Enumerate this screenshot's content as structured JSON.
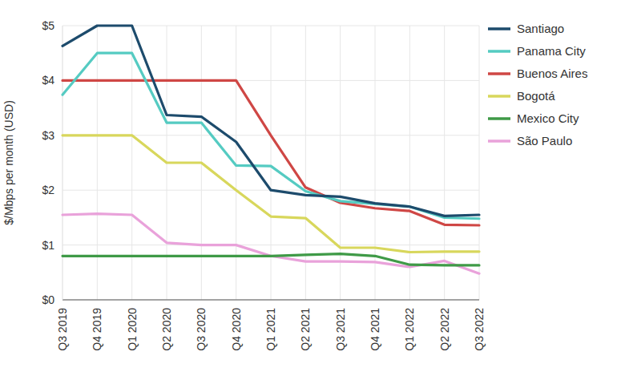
{
  "chart_data": {
    "type": "line",
    "y_label": "$/Mbps per month (USD)",
    "categories": [
      "Q3 2019",
      "Q4 2019",
      "Q1 2020",
      "Q2 2020",
      "Q3 2020",
      "Q4 2020",
      "Q1 2021",
      "Q2 2021",
      "Q3 2021",
      "Q4 2021",
      "Q1 2022",
      "Q2 2022",
      "Q3 2022"
    ],
    "series": [
      {
        "name": "Santiago",
        "color": "#1d4b6c",
        "values": [
          4.63,
          5.0,
          5.0,
          3.37,
          3.34,
          2.88,
          2.0,
          1.91,
          1.88,
          1.76,
          1.7,
          1.53,
          1.55
        ]
      },
      {
        "name": "Panama City",
        "color": "#55cbc2",
        "values": [
          3.74,
          4.5,
          4.5,
          3.23,
          3.23,
          2.45,
          2.44,
          1.98,
          1.8,
          1.75,
          1.7,
          1.5,
          1.48
        ]
      },
      {
        "name": "Buenos Aires",
        "color": "#cf4745",
        "values": [
          4.0,
          4.0,
          4.0,
          4.0,
          4.0,
          4.0,
          3.0,
          2.05,
          1.77,
          1.67,
          1.62,
          1.37,
          1.36
        ]
      },
      {
        "name": "Bogotá",
        "color": "#d8d75c",
        "values": [
          3.0,
          3.0,
          3.0,
          2.5,
          2.5,
          2.0,
          1.52,
          1.49,
          0.95,
          0.95,
          0.87,
          0.88,
          0.88
        ]
      },
      {
        "name": "Mexico City",
        "color": "#3f9a47",
        "values": [
          0.8,
          0.8,
          0.8,
          0.8,
          0.8,
          0.8,
          0.8,
          0.82,
          0.84,
          0.8,
          0.64,
          0.63,
          0.63
        ]
      },
      {
        "name": "São Paulo",
        "color": "#e9a2da",
        "values": [
          1.55,
          1.57,
          1.55,
          1.04,
          1.0,
          1.0,
          0.8,
          0.7,
          0.7,
          0.69,
          0.6,
          0.71,
          0.48
        ]
      }
    ],
    "ylim": [
      0,
      5
    ],
    "yticks": [
      {
        "value": 0,
        "label": "$0"
      },
      {
        "value": 1,
        "label": "$1"
      },
      {
        "value": 2,
        "label": "$2"
      },
      {
        "value": 3,
        "label": "$3"
      },
      {
        "value": 4,
        "label": "$4"
      },
      {
        "value": 5,
        "label": "$5"
      }
    ],
    "grid": true,
    "legend": "right"
  }
}
